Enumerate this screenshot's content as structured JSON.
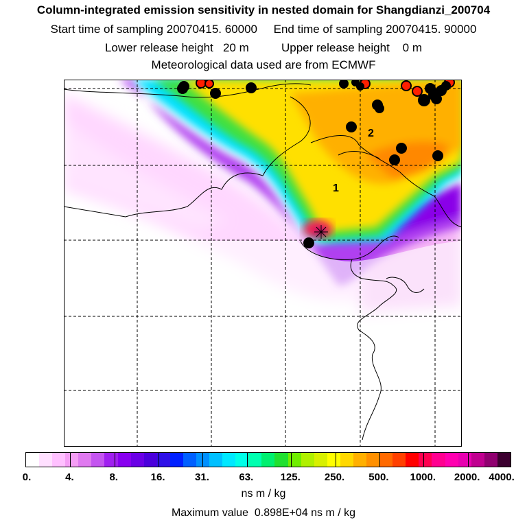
{
  "title": "Column-integrated emission sensitivity in nested domain for Shangdianzi_200704",
  "line2": "Start time of sampling 20070415. 60000     End time of sampling 20070415. 90000",
  "line3": "Lower release height   20 m          Upper release height    0 m",
  "line4": "Meteorological data used are from ECMWF",
  "map": {
    "labels": [
      {
        "id": "cluster-label-1",
        "text": "1"
      },
      {
        "id": "cluster-label-2",
        "text": "2"
      }
    ]
  },
  "colorbar": {
    "levels": [
      "0.",
      "4.",
      "8.",
      "16.",
      "31.",
      "63.",
      "125.",
      "250.",
      "500.",
      "1000.",
      "2000.",
      "4000."
    ],
    "colors": [
      "#ffffff",
      "#ffe0ff",
      "#ffc0ff",
      "#f59ef5",
      "#e07af0",
      "#c455f0",
      "#a020f0",
      "#8800f0",
      "#6a00e6",
      "#4b00dc",
      "#2f10e8",
      "#0020ff",
      "#0060ff",
      "#0090ff",
      "#00c0ff",
      "#00e8ff",
      "#00ffe8",
      "#00ffb0",
      "#00f070",
      "#20e030",
      "#70ee00",
      "#b0f000",
      "#d8f000",
      "#ffff00",
      "#ffd800",
      "#ffb000",
      "#ff9000",
      "#ff6a00",
      "#ff4000",
      "#ff0000",
      "#ff0050",
      "#ff0090",
      "#ff00b0",
      "#e800b0",
      "#c00090",
      "#900070",
      "#3c0030"
    ],
    "units": "ns m / kg"
  },
  "max_value_text": "Maximum value  0.898E+04 ns m / kg"
}
